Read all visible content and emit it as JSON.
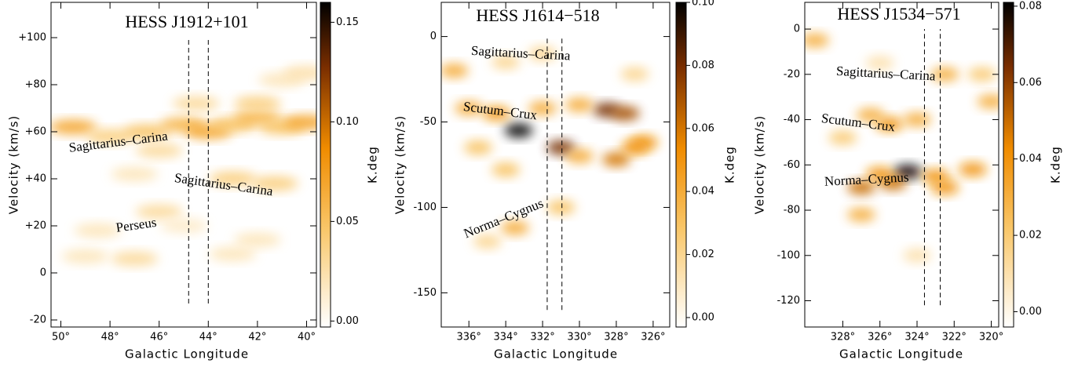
{
  "chart_data": [
    {
      "type": "heatmap",
      "title": "HESS J1912+101",
      "xlabel": "Galactic Longitude",
      "ylabel": "Velocity (km/s)",
      "clabel": "K.deg",
      "xlim": [
        50.4,
        39.6
      ],
      "ylim": [
        -23,
        115
      ],
      "clim": [
        -0.003,
        0.16
      ],
      "xticks": [
        {
          "value": 50,
          "label": "50°"
        },
        {
          "value": 48,
          "label": "48°"
        },
        {
          "value": 46,
          "label": "46°"
        },
        {
          "value": 44,
          "label": "44°"
        },
        {
          "value": 42,
          "label": "42°"
        },
        {
          "value": 40,
          "label": "40°"
        }
      ],
      "yticks": [
        {
          "value": 100,
          "label": "+100"
        },
        {
          "value": 80,
          "label": "+80"
        },
        {
          "value": 60,
          "label": "+60"
        },
        {
          "value": 40,
          "label": "+40"
        },
        {
          "value": 20,
          "label": "+20"
        },
        0,
        -20
      ],
      "cticks": [
        0.15,
        {
          "value": 0.1,
          "label": "0.10"
        },
        0.05,
        {
          "value": 0,
          "label": "0.00"
        }
      ],
      "annotations": [
        "Sagittarius–Carina",
        "Sagittarius–Carina",
        "Perseus"
      ],
      "vlines": [
        {
          "x": 44.8,
          "ymin": -13,
          "ymax": 99
        },
        {
          "x": 44.0,
          "ymin": -13,
          "ymax": 99
        }
      ],
      "x": [
        49.5,
        48,
        46.5,
        45,
        44,
        43,
        42,
        41,
        40,
        44.5,
        42,
        46,
        43,
        41.3,
        47,
        46,
        48.5,
        45,
        42,
        43,
        47,
        49,
        41,
        40
      ],
      "y": [
        62,
        58,
        60,
        63,
        60,
        63,
        66,
        62,
        64,
        72,
        72,
        52,
        40,
        38,
        42,
        26,
        18,
        20,
        14,
        8,
        6,
        7,
        82,
        85
      ],
      "values": [
        0.07,
        0.04,
        0.05,
        0.06,
        0.07,
        0.05,
        0.06,
        0.05,
        0.07,
        0.03,
        0.04,
        0.03,
        0.04,
        0.04,
        0.02,
        0.03,
        0.02,
        0.015,
        0.02,
        0.02,
        0.03,
        0.02,
        0.02,
        0.025
      ]
    },
    {
      "type": "heatmap",
      "title": "HESS J1614−518",
      "xlabel": "Galactic Longitude",
      "ylabel": "Velocity (km/s)",
      "clabel": "K.deg",
      "xlim": [
        337.5,
        325.1
      ],
      "ylim": [
        -170,
        20
      ],
      "clim": [
        -0.003,
        0.1
      ],
      "xticks": [
        {
          "value": 336,
          "label": "336°"
        },
        {
          "value": 334,
          "label": "334°"
        },
        {
          "value": 332,
          "label": "332°"
        },
        {
          "value": 330,
          "label": "330°"
        },
        {
          "value": 328,
          "label": "328°"
        },
        {
          "value": 326,
          "label": "326°"
        }
      ],
      "yticks": [
        0,
        -50,
        -100,
        -150
      ],
      "cticks": [
        {
          "value": 0.1,
          "label": "0.10"
        },
        0.08,
        0.06,
        0.04,
        0.02,
        {
          "value": 0,
          "label": "0.00"
        }
      ],
      "annotations": [
        "Sagittarius–Carina",
        "Scutum–Crux",
        "Norma–Cygnus"
      ],
      "vlines": [
        {
          "x": 331.75,
          "ymin": -160,
          "ymax": 0
        },
        {
          "x": 330.95,
          "ymin": -160,
          "ymax": 0
        }
      ],
      "x": [
        333.3,
        334.5,
        336,
        332,
        331,
        328.5,
        327.5,
        328,
        326.5,
        327,
        330,
        333.5,
        331,
        335,
        334,
        327,
        336.8,
        332,
        334,
        330,
        335.5
      ],
      "y": [
        -55,
        -45,
        -42,
        -42,
        -65,
        -43,
        -45,
        -72,
        -62,
        -65,
        -70,
        -112,
        -100,
        -120,
        -15,
        -22,
        -20,
        -10,
        -78,
        -40,
        -65
      ],
      "values": [
        0.1,
        0.05,
        0.04,
        0.04,
        0.08,
        0.08,
        0.07,
        0.06,
        0.05,
        0.05,
        0.04,
        0.04,
        0.03,
        0.02,
        0.02,
        0.02,
        0.04,
        0.02,
        0.03,
        0.04,
        0.03
      ]
    },
    {
      "type": "heatmap",
      "title": "HESS J1534−571",
      "xlabel": "Galactic Longitude",
      "ylabel": "Velocity (km/s)",
      "clabel": "K.deg",
      "xlim": [
        330.05,
        319.6
      ],
      "ylim": [
        -131.6,
        11.8
      ],
      "clim": [
        -0.004,
        0.081
      ],
      "xticks": [
        {
          "value": 328,
          "label": "328°"
        },
        {
          "value": 326,
          "label": "326°"
        },
        {
          "value": 324,
          "label": "324°"
        },
        {
          "value": 322,
          "label": "322°"
        },
        {
          "value": 320,
          "label": "320°"
        }
      ],
      "yticks": [
        0,
        -20,
        -40,
        -60,
        -80,
        -100,
        -120
      ],
      "cticks": [
        0.08,
        0.06,
        0.04,
        0.02,
        {
          "value": 0,
          "label": "0.00"
        }
      ],
      "annotations": [
        "Sagittarius–Carina",
        "Scutum–Crux",
        "Norma–Cygnus"
      ],
      "vlines": [
        {
          "x": 323.6,
          "ymin": -122,
          "ymax": 0
        },
        {
          "x": 322.75,
          "ymin": -122,
          "ymax": 0
        }
      ],
      "x": [
        329.5,
        324.5,
        325.3,
        327,
        326,
        323,
        321,
        322.5,
        325.5,
        326.5,
        324,
        327,
        322.5,
        320.5,
        320,
        328,
        326,
        324
      ],
      "y": [
        -5,
        -63,
        -68,
        -70,
        -64,
        -65,
        -62,
        -70,
        -42,
        -38,
        -40,
        -82,
        -20,
        -20,
        -32,
        -48,
        -15,
        -100
      ],
      "values": [
        0.03,
        0.08,
        0.05,
        0.05,
        0.04,
        0.04,
        0.04,
        0.04,
        0.04,
        0.03,
        0.03,
        0.03,
        0.03,
        0.02,
        0.03,
        0.02,
        0.01,
        0.01
      ]
    }
  ]
}
